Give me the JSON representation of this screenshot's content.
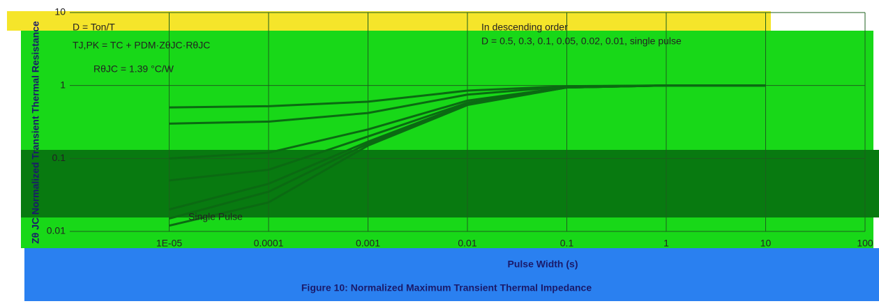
{
  "chart_data": {
    "type": "line",
    "title": "Figure 10: Normalized Maximum Transient Thermal Impedance",
    "x_label": "Pulse Width (s)",
    "y_label": "Zθ JC Normalized Transient Thermal Resistance",
    "annotations": [
      "In descending order",
      "D = 0.5, 0.3, 0.1, 0.05, 0.02, 0.01, single pulse",
      "D = Ton/T",
      "TJ,PK = TC + PDM·ZθJC·RθJC",
      "RθJC = 1.39 °C/W",
      "Single Pulse"
    ],
    "x": [
      1e-05,
      0.0001,
      0.001,
      0.01,
      0.1,
      1,
      10
    ],
    "series": [
      {
        "values": [
          0.5,
          0.52,
          0.6,
          0.85,
          0.98,
          1,
          1
        ]
      },
      {
        "values": [
          0.3,
          0.32,
          0.42,
          0.75,
          0.97,
          1,
          1
        ]
      },
      {
        "values": [
          0.1,
          0.12,
          0.25,
          0.62,
          0.95,
          1,
          1
        ]
      },
      {
        "values": [
          0.05,
          0.07,
          0.2,
          0.58,
          0.94,
          1,
          1
        ]
      },
      {
        "values": [
          0.02,
          0.045,
          0.17,
          0.56,
          0.94,
          1,
          1
        ]
      },
      {
        "values": [
          0.015,
          0.035,
          0.16,
          0.55,
          0.94,
          1,
          1
        ]
      },
      {
        "values": [
          0.012,
          0.025,
          0.15,
          0.54,
          0.94,
          1,
          1
        ]
      }
    ],
    "color": "#0b6a12",
    "log_x": true,
    "log_y": true,
    "xlim": [
      1e-06,
      100
    ],
    "ylim": [
      0.01,
      10
    ],
    "xticks": [
      {
        "value": 1e-05,
        "label": "1E-05"
      },
      0.0001,
      0.001,
      0.01,
      0.1,
      1,
      10,
      100
    ],
    "yticks": [
      0.01,
      0.1,
      1,
      10
    ],
    "grid": true
  }
}
